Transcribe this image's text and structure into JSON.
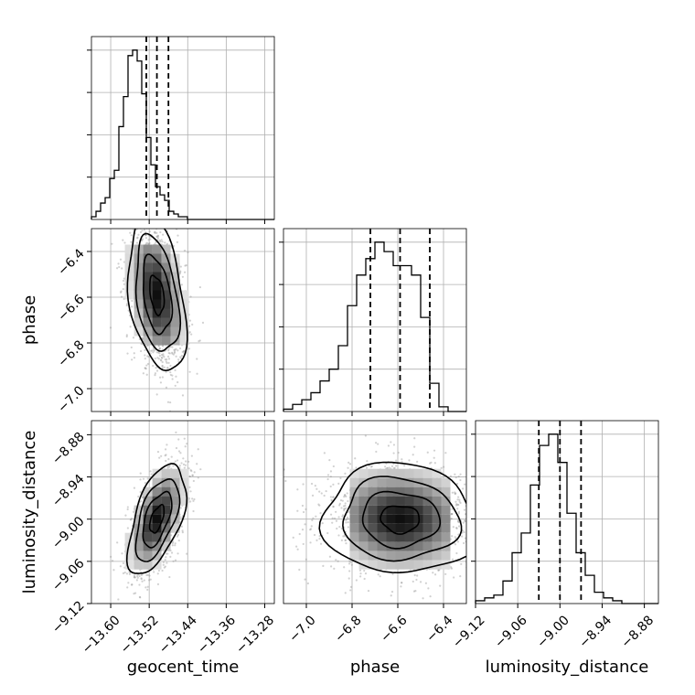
{
  "chart_data": {
    "type": "corner",
    "title": "",
    "parameters": [
      {
        "name": "geocent_time",
        "label": "geocent_time",
        "range": [
          -13.64,
          -13.26
        ],
        "ticks": [
          -13.6,
          -13.52,
          -13.44,
          -13.36,
          -13.28
        ],
        "tick_labels": [
          "−13.60",
          "−13.52",
          "−13.44",
          "−13.36",
          "−13.28"
        ],
        "quantiles": [
          -13.526,
          -13.504,
          -13.48
        ],
        "hist_edges_start": -13.64,
        "hist_bin_width": 0.0095,
        "hist_counts": [
          1,
          3,
          6,
          8,
          15,
          18,
          34,
          45,
          60,
          62,
          58,
          46,
          30,
          20,
          12,
          9,
          7,
          3,
          2,
          1,
          1,
          0,
          0,
          0,
          0,
          0,
          0,
          0,
          0,
          0,
          0,
          0,
          0,
          0,
          0,
          0,
          0,
          0,
          0,
          0
        ]
      },
      {
        "name": "phase",
        "label": "phase",
        "range": [
          -7.1,
          -6.3
        ],
        "ticks": [
          -7.0,
          -6.8,
          -6.6,
          -6.4
        ],
        "tick_labels": [
          "−7.0",
          "−6.8",
          "−6.6",
          "−6.4"
        ],
        "quantiles": [
          -6.72,
          -6.59,
          -6.46
        ],
        "hist_edges_start": -7.1,
        "hist_bin_width": 0.04,
        "hist_counts": [
          1,
          3,
          5,
          8,
          13,
          18,
          28,
          45,
          58,
          65,
          72,
          68,
          62,
          62,
          58,
          40,
          12,
          2,
          0,
          0
        ]
      },
      {
        "name": "luminosity_distance",
        "label": "luminosity_distance",
        "range": [
          -9.12,
          -8.86
        ],
        "ticks": [
          -9.12,
          -9.06,
          -9.0,
          -8.94,
          -8.88
        ],
        "tick_labels": [
          "−9.12",
          "−9.06",
          "−9.00",
          "−8.94",
          "−8.88"
        ],
        "quantiles": [
          -9.03,
          -9.0,
          -8.97
        ],
        "hist_edges_start": -9.12,
        "hist_bin_width": 0.013,
        "hist_counts": [
          1,
          2,
          3,
          8,
          18,
          25,
          42,
          56,
          60,
          50,
          32,
          18,
          10,
          4,
          2,
          1,
          0,
          0,
          0,
          0
        ]
      }
    ],
    "correlations": {
      "phase_vs_geocent_time": -0.35,
      "luminosity_distance_vs_geocent_time": 0.55,
      "luminosity_distance_vs_phase": -0.05
    },
    "contour_levels_sigma": [
      0.5,
      1.0,
      1.5,
      2.0
    ],
    "grid": true,
    "colors": {
      "line": "#000000",
      "grid": "#b0b0b0",
      "points": "#9a9a9a"
    }
  }
}
